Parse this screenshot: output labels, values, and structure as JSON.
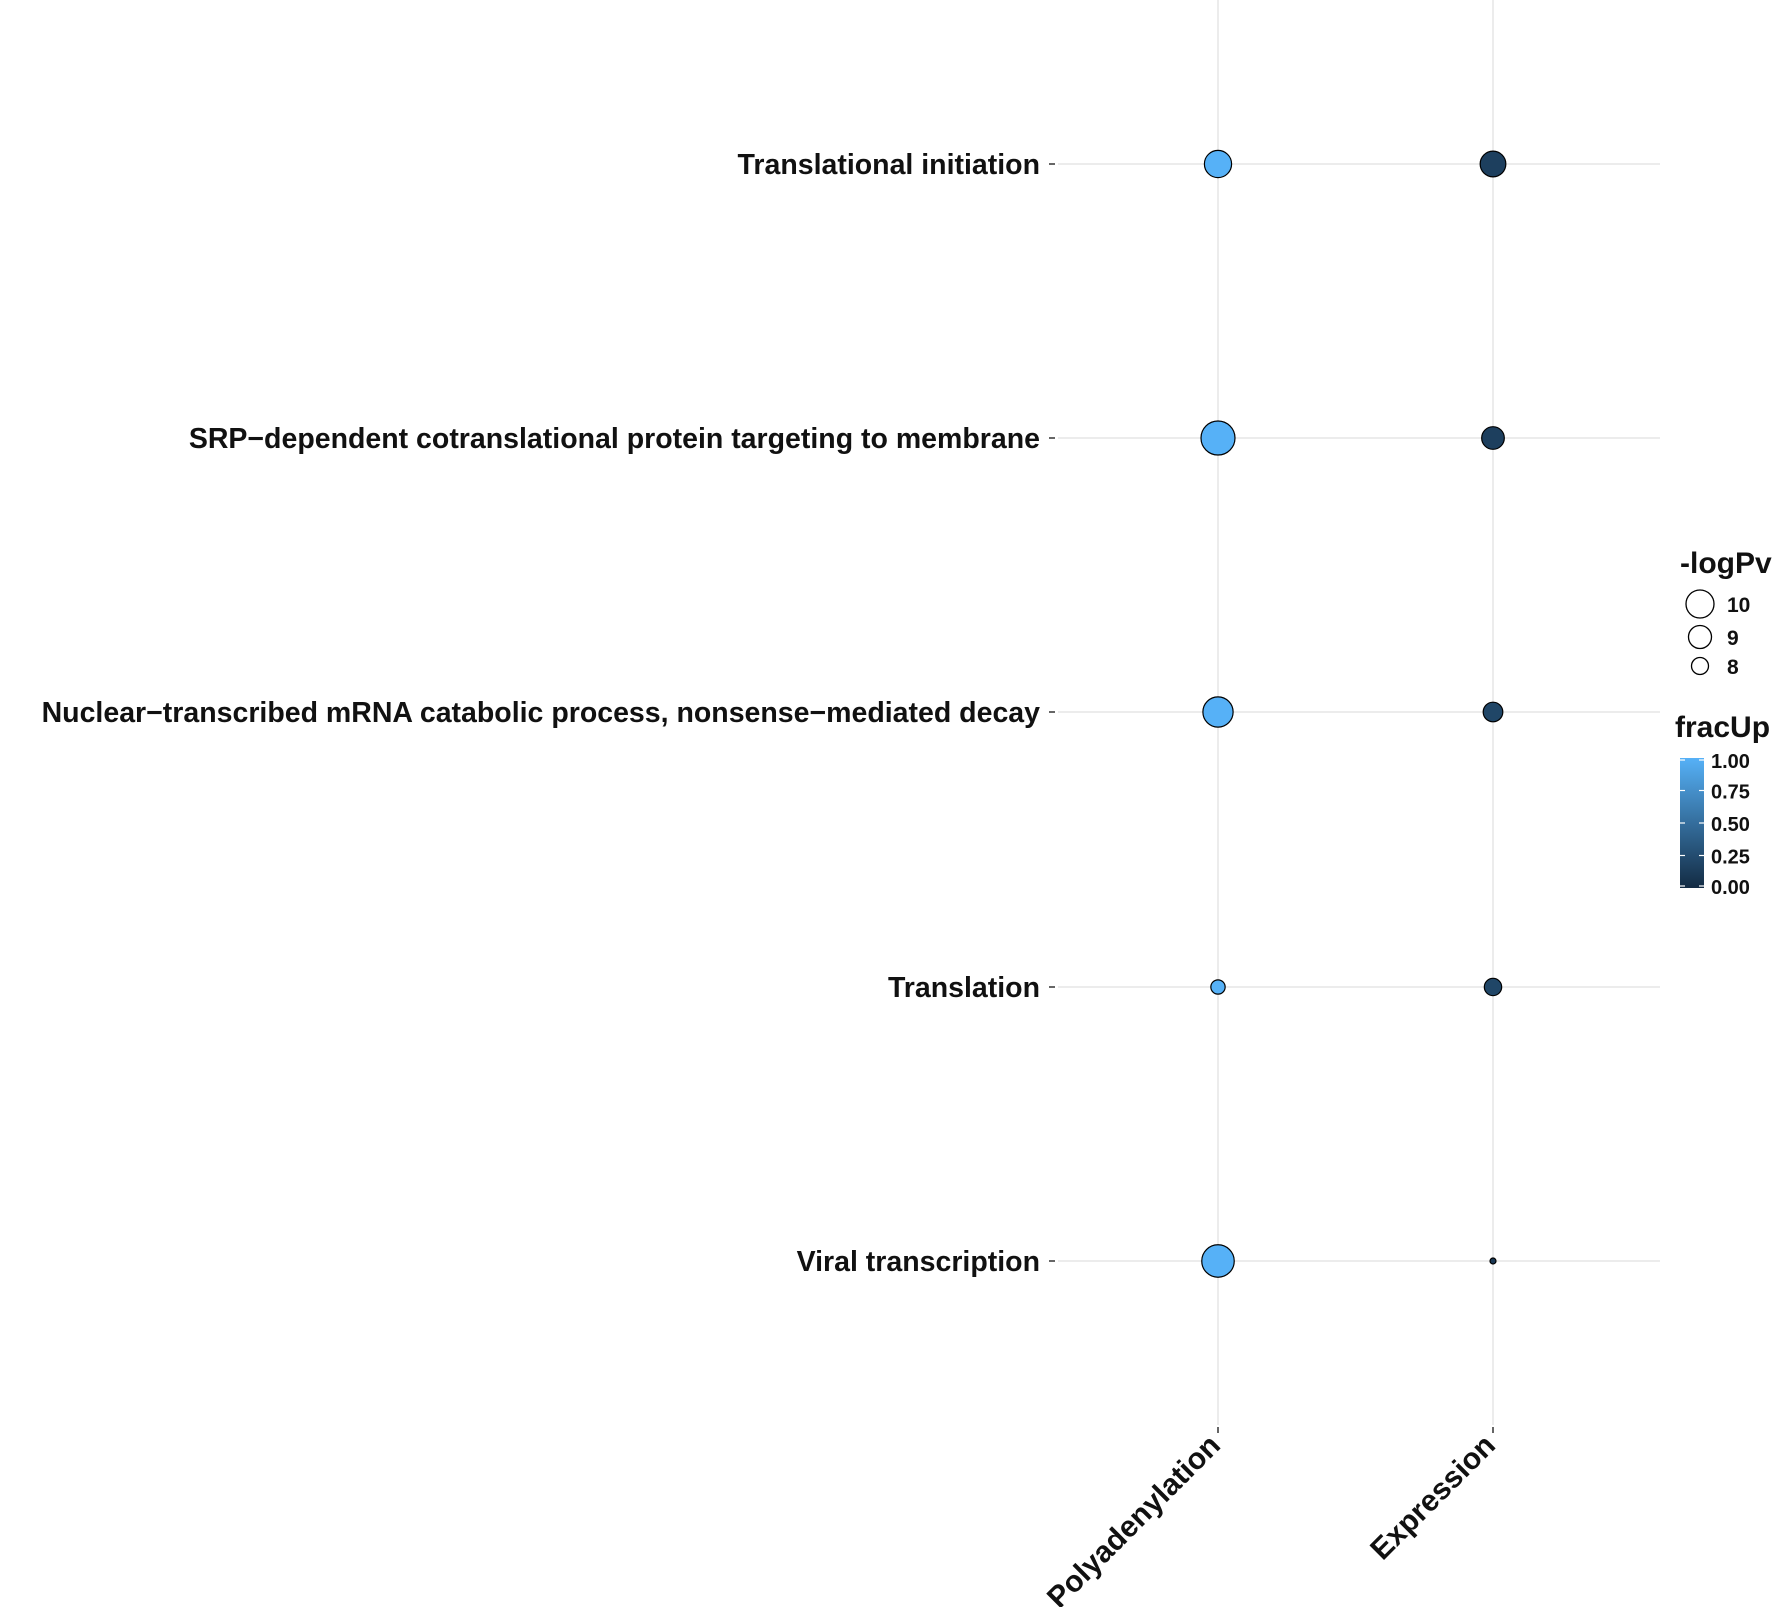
{
  "chart_data": {
    "type": "scatter",
    "subtype": "bubble",
    "categories_x": [
      "Polyadenylation",
      "Expression"
    ],
    "categories_y": [
      "Translational initiation",
      "SRP−dependent cotranslational protein targeting to membrane",
      "Nuclear−transcribed mRNA catabolic process, nonsense−mediated decay",
      "Translation",
      "Viral transcription"
    ],
    "points": [
      {
        "term": "Translational initiation",
        "group": "Polyadenylation",
        "logPv": 9.3,
        "fracUp": 1.0
      },
      {
        "term": "Translational initiation",
        "group": "Expression",
        "logPv": 9.1,
        "fracUp": 0.15
      },
      {
        "term": "SRP−dependent cotranslational protein targeting to membrane",
        "group": "Polyadenylation",
        "logPv": 10.2,
        "fracUp": 1.0
      },
      {
        "term": "SRP−dependent cotranslational protein targeting to membrane",
        "group": "Expression",
        "logPv": 8.7,
        "fracUp": 0.15
      },
      {
        "term": "Nuclear−transcribed mRNA catabolic process, nonsense−mediated decay",
        "group": "Polyadenylation",
        "logPv": 9.7,
        "fracUp": 1.0
      },
      {
        "term": "Nuclear−transcribed mRNA catabolic process, nonsense−mediated decay",
        "group": "Expression",
        "logPv": 8.3,
        "fracUp": 0.2
      },
      {
        "term": "Translation",
        "group": "Polyadenylation",
        "logPv": 7.6,
        "fracUp": 1.0
      },
      {
        "term": "Translation",
        "group": "Expression",
        "logPv": 8.0,
        "fracUp": 0.2
      },
      {
        "term": "Viral transcription",
        "group": "Polyadenylation",
        "logPv": 10.0,
        "fracUp": 1.0
      },
      {
        "term": "Viral transcription",
        "group": "Expression",
        "logPv": 6.5,
        "fracUp": 0.1
      }
    ],
    "legend_size": {
      "title": "-logPv",
      "values": [
        10,
        9,
        8
      ],
      "labels": [
        "10",
        "9",
        "8"
      ]
    },
    "legend_color": {
      "title": "fracUp",
      "range": [
        0,
        1
      ],
      "ticks": [
        "1.00",
        "0.75",
        "0.50",
        "0.25",
        "0.00"
      ],
      "color_low": "#132B43",
      "color_high": "#56B1F7"
    },
    "legend_placement": "right",
    "grid": true
  }
}
